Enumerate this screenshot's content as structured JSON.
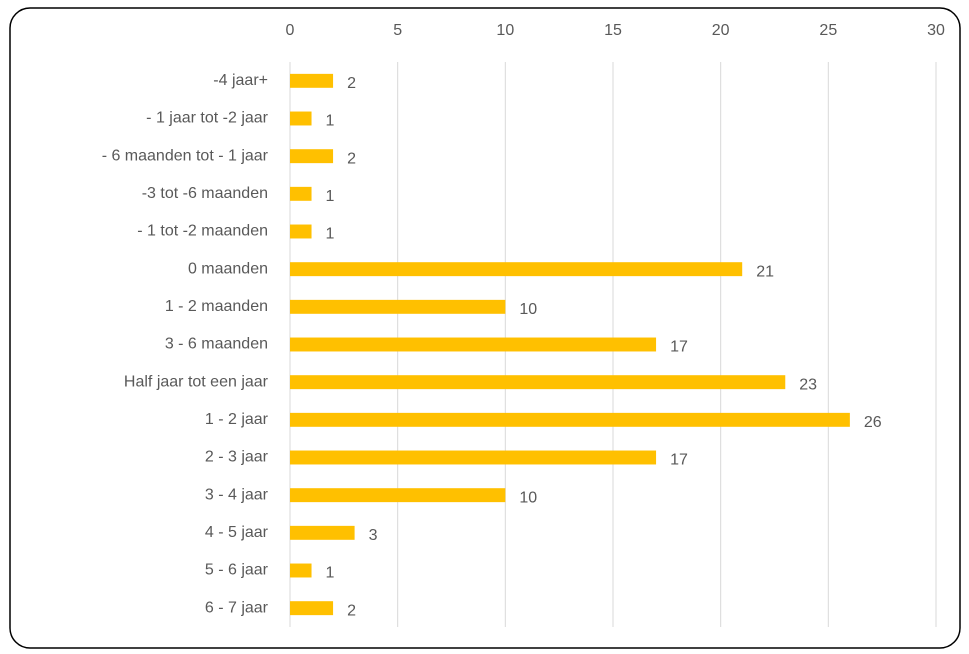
{
  "chart_data": {
    "type": "bar",
    "orientation": "horizontal",
    "categories": [
      "-4 jaar+",
      "- 1 jaar tot -2 jaar",
      "- 6 maanden tot - 1  jaar",
      "-3 tot -6 maanden",
      "- 1 tot -2 maanden",
      "0 maanden",
      "1 - 2 maanden",
      "3 - 6 maanden",
      "Half jaar tot een jaar",
      "1 - 2 jaar",
      "2 - 3 jaar",
      "3 - 4 jaar",
      "4 - 5 jaar",
      "5 - 6 jaar",
      "6 - 7 jaar"
    ],
    "values": [
      2,
      1,
      2,
      1,
      1,
      21,
      10,
      17,
      23,
      26,
      17,
      10,
      3,
      1,
      2
    ],
    "color": "#ffc000",
    "xlim": [
      0,
      30
    ],
    "xticks": [
      0,
      5,
      10,
      15,
      20,
      25,
      30
    ],
    "grid": true,
    "data_labels": true
  }
}
